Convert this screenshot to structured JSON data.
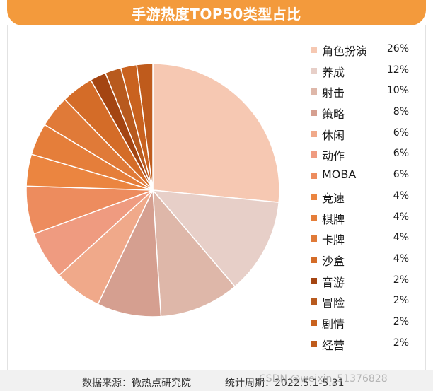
{
  "chart_data": {
    "type": "pie",
    "title": "手游热度TOP50类型占比",
    "slices": [
      {
        "label": "角色扮演",
        "value": 26,
        "display": "26%",
        "color": "#f6c8b2"
      },
      {
        "label": "养成",
        "value": 12,
        "display": "12%",
        "color": "#e7cfc8"
      },
      {
        "label": "射击",
        "value": 10,
        "display": "10%",
        "color": "#deb7a9"
      },
      {
        "label": "策略",
        "value": 8,
        "display": "8%",
        "color": "#d59f90"
      },
      {
        "label": "休闲",
        "value": 6,
        "display": "6%",
        "color": "#f0a98a"
      },
      {
        "label": "动作",
        "value": 6,
        "display": "6%",
        "color": "#ef9b80"
      },
      {
        "label": "MOBA",
        "value": 6,
        "display": "6%",
        "color": "#ed8c5e"
      },
      {
        "label": "竞速",
        "value": 4,
        "display": "4%",
        "color": "#eb8540"
      },
      {
        "label": "棋牌",
        "value": 4,
        "display": "4%",
        "color": "#e57e3a"
      },
      {
        "label": "卡牌",
        "value": 4,
        "display": "4%",
        "color": "#e07a38"
      },
      {
        "label": "沙盒",
        "value": 4,
        "display": "4%",
        "color": "#d46c28"
      },
      {
        "label": "音游",
        "value": 2,
        "display": "2%",
        "color": "#a44512"
      },
      {
        "label": "冒险",
        "value": 2,
        "display": "2%",
        "color": "#b85a1e"
      },
      {
        "label": "剧情",
        "value": 2,
        "display": "2%",
        "color": "#c9621f"
      },
      {
        "label": "经营",
        "value": 2,
        "display": "2%",
        "color": "#bf5b1c"
      }
    ],
    "legend_placement": "right"
  },
  "footer": {
    "source": "数据来源：微热点研究院",
    "period": "统计周期：2022.5.1-5.31"
  },
  "watermark": "CSDN @weixin_51376828",
  "colors": {
    "title_bar": "#f39a3c",
    "footer_bg": "#f1f1f1"
  }
}
